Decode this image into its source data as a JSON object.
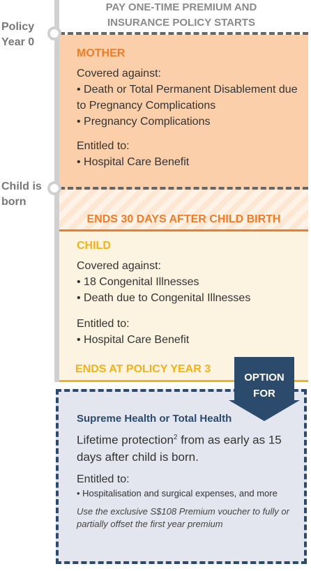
{
  "header": {
    "title": "PAY ONE-TIME PREMIUM AND INSURANCE POLICY STARTS"
  },
  "timeline": {
    "start_label": "Policy Year 0",
    "birth_label": "Child is born"
  },
  "mother": {
    "title": "MOTHER",
    "covered_heading": "Covered against:",
    "covered_items": [
      "• Death or Total Permanent Disablement due to Pregnancy Complications",
      "• Pregnancy Complications"
    ],
    "entitled_heading": "Entitled to:",
    "entitled_items": [
      "• Hospital Care Benefit"
    ]
  },
  "mother_end": "ENDS 30 DAYS AFTER CHILD BIRTH",
  "child": {
    "title": "CHILD",
    "covered_heading": "Covered against:",
    "covered_items": [
      "• 18 Congenital Illnesses",
      "• Death due to Congenital Illnesses"
    ],
    "entitled_heading": "Entitled to:",
    "entitled_items": [
      "• Hospital Care Benefit"
    ]
  },
  "child_end": "ENDS AT POLICY YEAR 3",
  "option": {
    "badge": "OPTION FOR",
    "title": "Supreme Health or Total Health",
    "protection_text": "Lifetime protection",
    "protection_footnote": "2",
    "protection_rest": " from as early as 15 days after child is born.",
    "entitled_heading": "Entitled to:",
    "entitled_items": [
      "• Hospitalisation and surgical expenses, and more"
    ],
    "note": "Use the exclusive S$108 Premium voucher to fully or partially offset the first year premium"
  }
}
